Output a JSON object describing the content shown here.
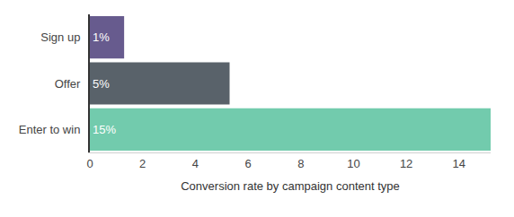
{
  "chart_data": {
    "type": "bar",
    "orientation": "horizontal",
    "categories": [
      "Sign up",
      "Offer",
      "Enter to win"
    ],
    "values": [
      1.3,
      5.3,
      15.2
    ],
    "value_labels": [
      "1%",
      "5%",
      "15%"
    ],
    "data_labels": true,
    "colors": [
      "#675b8e",
      "#59626a",
      "#72cbad"
    ],
    "xlabel": "Conversion rate by campaign content type",
    "xlim": [
      0,
      15.2
    ],
    "xticks": [
      0,
      2,
      4,
      6,
      8,
      10,
      12,
      14
    ],
    "grid": false
  }
}
